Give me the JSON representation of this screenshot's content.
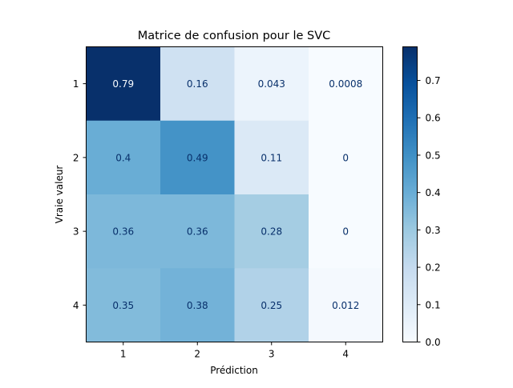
{
  "chart_data": {
    "type": "heatmap",
    "title": "Matrice de confusion pour le SVC",
    "xlabel": "Prédiction",
    "ylabel": "Vraie valeur",
    "x_categories": [
      "1",
      "2",
      "3",
      "4"
    ],
    "y_categories": [
      "1",
      "2",
      "3",
      "4"
    ],
    "values": [
      [
        0.79,
        0.16,
        0.043,
        0.0008
      ],
      [
        0.4,
        0.49,
        0.11,
        0
      ],
      [
        0.36,
        0.36,
        0.28,
        0
      ],
      [
        0.35,
        0.38,
        0.25,
        0.012
      ]
    ],
    "cell_labels": [
      [
        "0.79",
        "0.16",
        "0.043",
        "0.0008"
      ],
      [
        "0.4",
        "0.49",
        "0.11",
        "0"
      ],
      [
        "0.36",
        "0.36",
        "0.28",
        "0"
      ],
      [
        "0.35",
        "0.38",
        "0.25",
        "0.012"
      ]
    ],
    "colormap": "Blues",
    "vmin": 0.0,
    "vmax": 0.79,
    "colorbar_ticks": [
      "0.0",
      "0.1",
      "0.2",
      "0.3",
      "0.4",
      "0.5",
      "0.6",
      "0.7"
    ],
    "grid": false
  }
}
